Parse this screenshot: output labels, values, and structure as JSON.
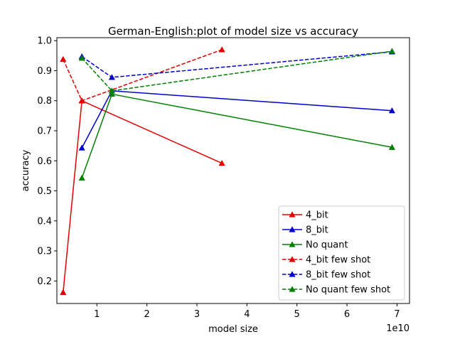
{
  "chart_data": {
    "type": "line",
    "title": "German-English:plot of model size vs accuracy",
    "xlabel": "model size",
    "ylabel": "accuracy",
    "x_offset_label": "1e10",
    "xlim": [
      0.2,
      7.25
    ],
    "ylim": [
      0.125,
      1.01
    ],
    "x_ticks": [
      1,
      2,
      3,
      4,
      5,
      6,
      7
    ],
    "x_tick_labels": [
      "1",
      "2",
      "3",
      "4",
      "5",
      "6",
      "7"
    ],
    "y_ticks": [
      0.2,
      0.3,
      0.4,
      0.5,
      0.6,
      0.7,
      0.8,
      0.9,
      1.0
    ],
    "y_tick_labels": [
      "0.2",
      "0.3",
      "0.4",
      "0.5",
      "0.6",
      "0.7",
      "0.8",
      "0.9",
      "1.0"
    ],
    "grid": false,
    "legend_position": "lower-right",
    "series": [
      {
        "name": "4_bit",
        "color": "#e00000",
        "dash": "solid",
        "marker": "triangle",
        "x": [
          0.325,
          0.7,
          3.5
        ],
        "y": [
          0.162,
          0.8,
          0.592
        ]
      },
      {
        "name": "8_bit",
        "color": "#0000cc",
        "dash": "solid",
        "marker": "triangle",
        "x": [
          0.7,
          1.3,
          6.9
        ],
        "y": [
          0.643,
          0.833,
          0.767
        ]
      },
      {
        "name": "No quant",
        "color": "#008000",
        "dash": "solid",
        "marker": "triangle",
        "x": [
          0.7,
          1.3,
          6.9
        ],
        "y": [
          0.543,
          0.822,
          0.645
        ]
      },
      {
        "name": "4_bit few shot",
        "color": "#e00000",
        "dash": "dashed",
        "marker": "triangle",
        "x": [
          0.325,
          0.7,
          3.5
        ],
        "y": [
          0.938,
          0.8,
          0.97
        ]
      },
      {
        "name": "8_bit few shot",
        "color": "#0000cc",
        "dash": "dashed",
        "marker": "triangle",
        "x": [
          0.7,
          1.3,
          6.9
        ],
        "y": [
          0.947,
          0.878,
          0.963
        ]
      },
      {
        "name": "No quant few shot",
        "color": "#008000",
        "dash": "dashed",
        "marker": "triangle",
        "x": [
          0.7,
          1.3,
          6.9
        ],
        "y": [
          0.942,
          0.833,
          0.965
        ]
      }
    ]
  }
}
